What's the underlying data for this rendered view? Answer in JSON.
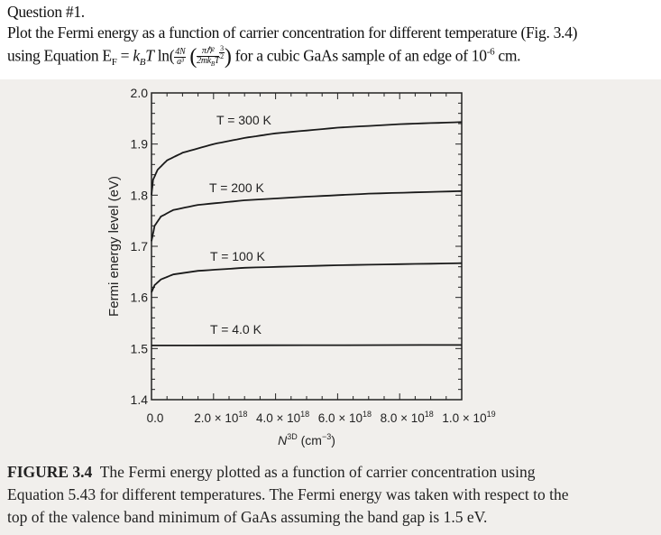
{
  "question": {
    "title": "Question #1.",
    "line1": "Plot the Fermi energy as  a function of carrier concentration for different temperature (Fig. 3.4)",
    "line2_prefix": "using Equation E",
    "line2_sub": "F",
    "equation": {
      "eq": " = ",
      "kB": "k",
      "kB_sub": "B",
      "T": "T",
      "ln": " ln(",
      "frac1_num": "4N",
      "frac1_den": "a³",
      "frac2_num": "πℏ²",
      "frac2_den": "2mk",
      "frac2_den_sub": "B",
      "frac2_den_T": "T",
      "exp_num": "3",
      "exp_den": "2"
    },
    "line2_suffix": " for a cubic GaAs sample of an edge of 10",
    "line2_exp": "-6",
    "line2_end": " cm."
  },
  "chart_data": {
    "type": "line",
    "title": "",
    "xlabel": "N",
    "xlabel_sup": "3D",
    "xlabel_unit": " (cm",
    "xlabel_unit_sup": "−3",
    "xlabel_close": ")",
    "ylabel": "Fermi energy level (eV)",
    "xlim": [
      0,
      1e+19
    ],
    "ylim": [
      1.4,
      2.0
    ],
    "grid": false,
    "legend": "inline labels",
    "x_ticks": [
      {
        "value": 0,
        "label": "0.0",
        "exp": ""
      },
      {
        "value": 2e+18,
        "label": "2.0 × 10",
        "exp": "18"
      },
      {
        "value": 4e+18,
        "label": "4.0 × 10",
        "exp": "18"
      },
      {
        "value": 6e+18,
        "label": "6.0 × 10",
        "exp": "18"
      },
      {
        "value": 8e+18,
        "label": "8.0 × 10",
        "exp": "18"
      },
      {
        "value": 1e+19,
        "label": "1.0 × 10",
        "exp": "19"
      }
    ],
    "y_ticks": [
      {
        "value": 1.4,
        "label": "1.4"
      },
      {
        "value": 1.5,
        "label": "1.5"
      },
      {
        "value": 1.6,
        "label": "1.6"
      },
      {
        "value": 1.7,
        "label": "1.7"
      },
      {
        "value": 1.8,
        "label": "1.8"
      },
      {
        "value": 1.9,
        "label": "1.9"
      },
      {
        "value": 2.0,
        "label": "2.0"
      }
    ],
    "series": [
      {
        "name": "T = 300 K",
        "x": [
          0,
          5e+16,
          2e+17,
          5e+17,
          1e+18,
          2e+18,
          3e+18,
          4e+18,
          6e+18,
          8e+18,
          1e+19
        ],
        "y": [
          1.8,
          1.83,
          1.85,
          1.868,
          1.883,
          1.9,
          1.912,
          1.921,
          1.932,
          1.939,
          1.943
        ]
      },
      {
        "name": "T = 200 K",
        "x": [
          0,
          1e+17,
          3e+17,
          7e+17,
          1.5e+18,
          3e+18,
          5e+18,
          7e+18,
          1e+19
        ],
        "y": [
          1.71,
          1.74,
          1.758,
          1.771,
          1.781,
          1.79,
          1.797,
          1.803,
          1.808
        ]
      },
      {
        "name": "T = 100 K",
        "x": [
          0,
          1e+17,
          3e+17,
          7e+17,
          1.5e+18,
          3e+18,
          6e+18,
          1e+19
        ],
        "y": [
          1.61,
          1.624,
          1.635,
          1.645,
          1.652,
          1.658,
          1.663,
          1.667
        ]
      },
      {
        "name": "T = 4.0 K",
        "x": [
          0,
          1e+19
        ],
        "y": [
          1.506,
          1.507
        ]
      }
    ]
  },
  "caption": {
    "label": "FIGURE 3.4",
    "line1": "  The Fermi energy plotted as a function of carrier concentration using",
    "line2": "Equation 5.43 for different temperatures. The Fermi energy was taken with respect to the",
    "line3": "top of the valence band minimum of GaAs assuming the band gap is 1.5 eV."
  }
}
